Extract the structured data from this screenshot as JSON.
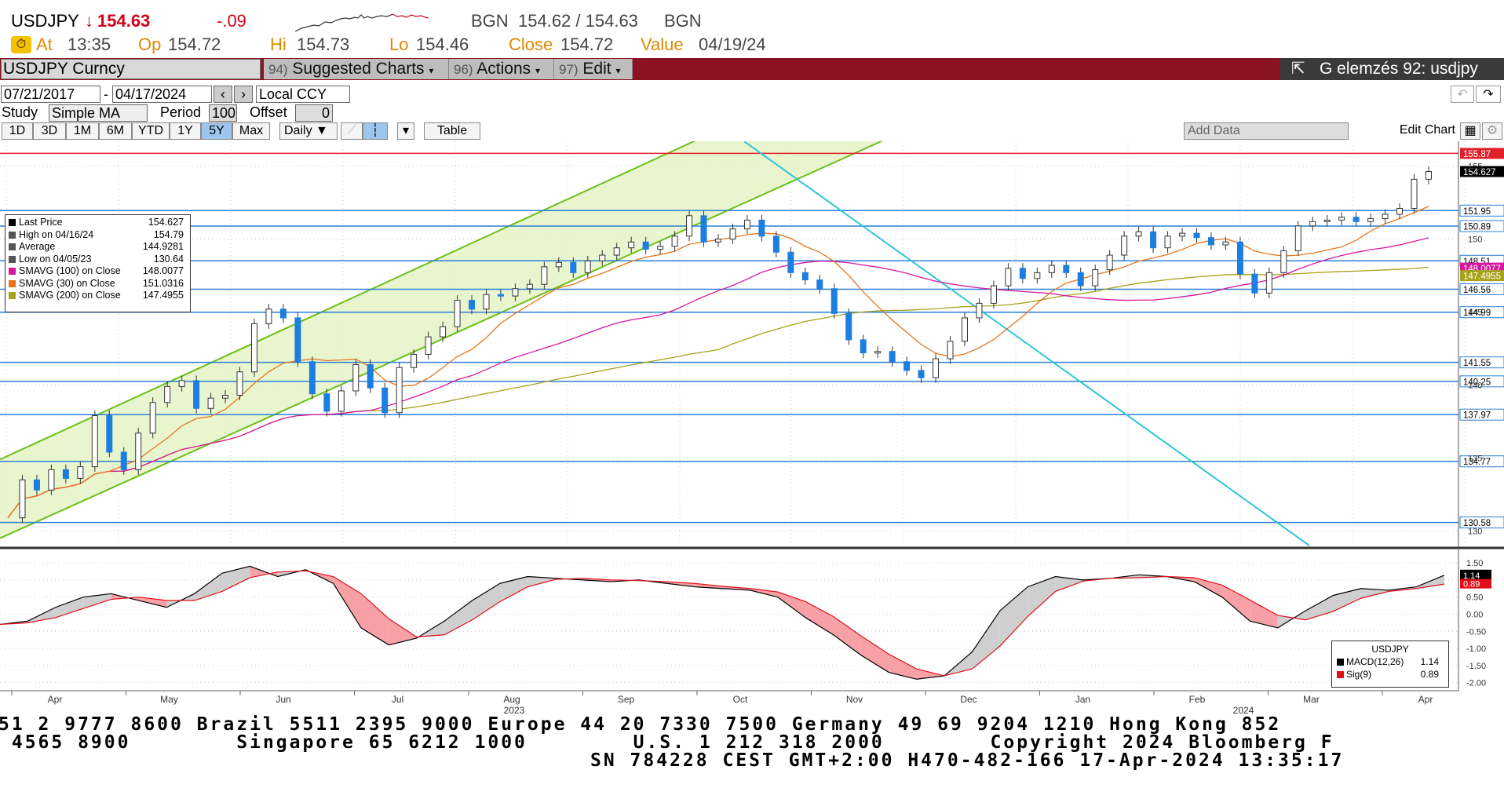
{
  "header": {
    "symbol": "USDJPY",
    "price_arrow": "↓",
    "price": "154.63",
    "change": "-.09",
    "bgn_label": "BGN",
    "bid_ask": "154.62 / 154.63",
    "bgn_label2": "BGN",
    "at_label": "At",
    "at_time": "13:35",
    "op_label": "Op",
    "op_value": "154.72",
    "hi_label": "Hi",
    "hi_value": "154.73",
    "lo_label": "Lo",
    "lo_value": "154.46",
    "close_label": "Close",
    "close_value": "154.72",
    "value_label": "Value",
    "value_date": "04/19/24"
  },
  "toolbar": {
    "security": "USDJPY Curncy",
    "suggested_num": "94)",
    "suggested_label": "Suggested Charts",
    "actions_num": "96)",
    "actions_label": "Actions",
    "edit_num": "97)",
    "edit_label": "Edit",
    "chart_title": "G elemzés 92: usdjpy"
  },
  "controls": {
    "start_date": "07/21/2017",
    "end_date": "04/17/2024",
    "dash": "-",
    "currency": "Local CCY",
    "study_label": "Study",
    "study_value": "Simple MA",
    "period_label": "Period",
    "period_value": "100",
    "offset_label": "Offset",
    "offset_value": "0",
    "ranges": [
      "1D",
      "3D",
      "1M",
      "6M",
      "YTD",
      "1Y",
      "5Y",
      "Max"
    ],
    "active_range": "5Y",
    "frequency": "Daily",
    "table_label": "Table",
    "add_data_placeholder": "Add Data",
    "edit_chart_label": "Edit Chart"
  },
  "legend": [
    {
      "label": "Last Price",
      "value": "154.627",
      "color": "#000000"
    },
    {
      "label": "High on 04/16/24",
      "value": "154.79",
      "color": "#555555"
    },
    {
      "label": "Average",
      "value": "144.9281",
      "color": "#555555"
    },
    {
      "label": "Low on 04/05/23",
      "value": "130.64",
      "color": "#555555"
    },
    {
      "label": "SMAVG (100)  on Close",
      "value": "148.0077",
      "color": "#d6189e"
    },
    {
      "label": "SMAVG (30)  on Close",
      "value": "151.0316",
      "color": "#e8751a"
    },
    {
      "label": "SMAVG (200)  on Close",
      "value": "147.4955",
      "color": "#a6a21a"
    }
  ],
  "macd_legend": {
    "title": "USDJPY",
    "items": [
      {
        "label": "MACD(12,26)",
        "value": "1.14",
        "color": "#000000"
      },
      {
        "label": "Sig(9)",
        "value": "0.89",
        "color": "#e0101a"
      }
    ]
  },
  "chart_data": [
    {
      "type": "candlestick",
      "title": "USDJPY Curncy",
      "x_labels": [
        "Apr",
        "May",
        "Jun",
        "Jul",
        "Aug",
        "Sep",
        "Oct",
        "Nov",
        "Dec",
        "Jan",
        "Feb",
        "Mar",
        "Apr"
      ],
      "year_labels": [
        "2023",
        "2024"
      ],
      "y_ticks": [
        130,
        135,
        140,
        145,
        150,
        155
      ],
      "ylim": [
        129,
        156.7
      ],
      "horizontal_levels": [
        155.87,
        151.95,
        150.89,
        148.51,
        146.56,
        144.99,
        141.55,
        140.25,
        137.97,
        134.77,
        130.58
      ],
      "right_labels": [
        "155.87",
        "154.627",
        "151.95",
        "150.89",
        "148.51",
        "148.0077",
        "147.4955",
        "146.56",
        "144.99",
        "141.55",
        "140.25",
        "137.97",
        "134.77",
        "130.58"
      ],
      "last_price": 154.627,
      "close_path": [
        130.9,
        133.5,
        132.8,
        134.2,
        133.6,
        134.4,
        137.9,
        135.4,
        134.2,
        136.7,
        138.8,
        139.9,
        140.3,
        138.4,
        139.1,
        139.3,
        140.9,
        144.2,
        145.2,
        144.6,
        141.6,
        139.4,
        138.2,
        139.6,
        141.4,
        139.8,
        138.1,
        141.2,
        142.1,
        143.3,
        144.0,
        145.8,
        145.2,
        146.2,
        146.1,
        146.6,
        146.9,
        148.1,
        148.4,
        147.7,
        148.5,
        148.9,
        149.4,
        149.8,
        149.3,
        149.5,
        150.2,
        151.6,
        149.8,
        150.0,
        150.7,
        151.3,
        150.2,
        149.1,
        147.7,
        147.2,
        146.6,
        144.9,
        143.1,
        142.2,
        142.3,
        141.6,
        141.0,
        140.5,
        141.8,
        143.0,
        144.6,
        145.6,
        146.8,
        148.0,
        147.3,
        147.7,
        148.2,
        147.7,
        146.8,
        147.9,
        148.9,
        150.2,
        150.5,
        149.4,
        150.2,
        150.4,
        150.1,
        149.6,
        149.8,
        147.6,
        146.3,
        147.7,
        149.2,
        150.9,
        151.2,
        151.3,
        151.5,
        151.2,
        151.4,
        151.7,
        152.1,
        154.1,
        154.63
      ],
      "bull_color": "#ffffff",
      "bear_color": "#1c7ee0",
      "channel": {
        "fill": "#e3f2c2",
        "line": "#6cbf1a"
      },
      "downtrend_color": "#2cc6dc"
    },
    {
      "type": "line",
      "title": "MACD",
      "series": [
        {
          "name": "MACD(12,26)",
          "color": "#000000"
        },
        {
          "name": "Sig(9)",
          "color": "#e0101a"
        }
      ],
      "y_ticks": [
        "1.50",
        "1.00",
        "0.50",
        "0.00",
        "-0.50",
        "-1.00",
        "-1.50",
        "-2.00"
      ],
      "ylim": [
        -2.1,
        1.8
      ],
      "last_macd": 1.14,
      "last_signal": 0.89,
      "macd_path": [
        -0.3,
        -0.2,
        0.2,
        0.5,
        0.6,
        0.4,
        0.2,
        0.6,
        1.2,
        1.4,
        1.1,
        1.3,
        0.9,
        -0.4,
        -0.9,
        -0.7,
        -0.2,
        0.4,
        0.9,
        1.1,
        1.05,
        1.0,
        0.95,
        1.0,
        0.9,
        0.8,
        0.75,
        0.7,
        0.5,
        -0.1,
        -0.6,
        -1.2,
        -1.7,
        -1.9,
        -1.8,
        -1.1,
        0.1,
        0.8,
        1.1,
        1.0,
        1.05,
        1.15,
        1.1,
        0.95,
        0.5,
        -0.2,
        -0.4,
        0.1,
        0.55,
        0.75,
        0.7,
        0.8,
        1.14
      ]
    }
  ],
  "footer": {
    "line1": "51 2 9777 8600 Brazil 5511 2395 9000 Europe 44 20 7330 7500 Germany 49 69 9204 1210 Hong Kong 852",
    "line2": " 4565 8900        Singapore 65 6212 1000        U.S. 1 212 318 2000        Copyright 2024 Bloomberg F",
    "line3": "SN 784228 CEST GMT+2:00 H470-482-166 17-Apr-2024 13:35:17"
  }
}
